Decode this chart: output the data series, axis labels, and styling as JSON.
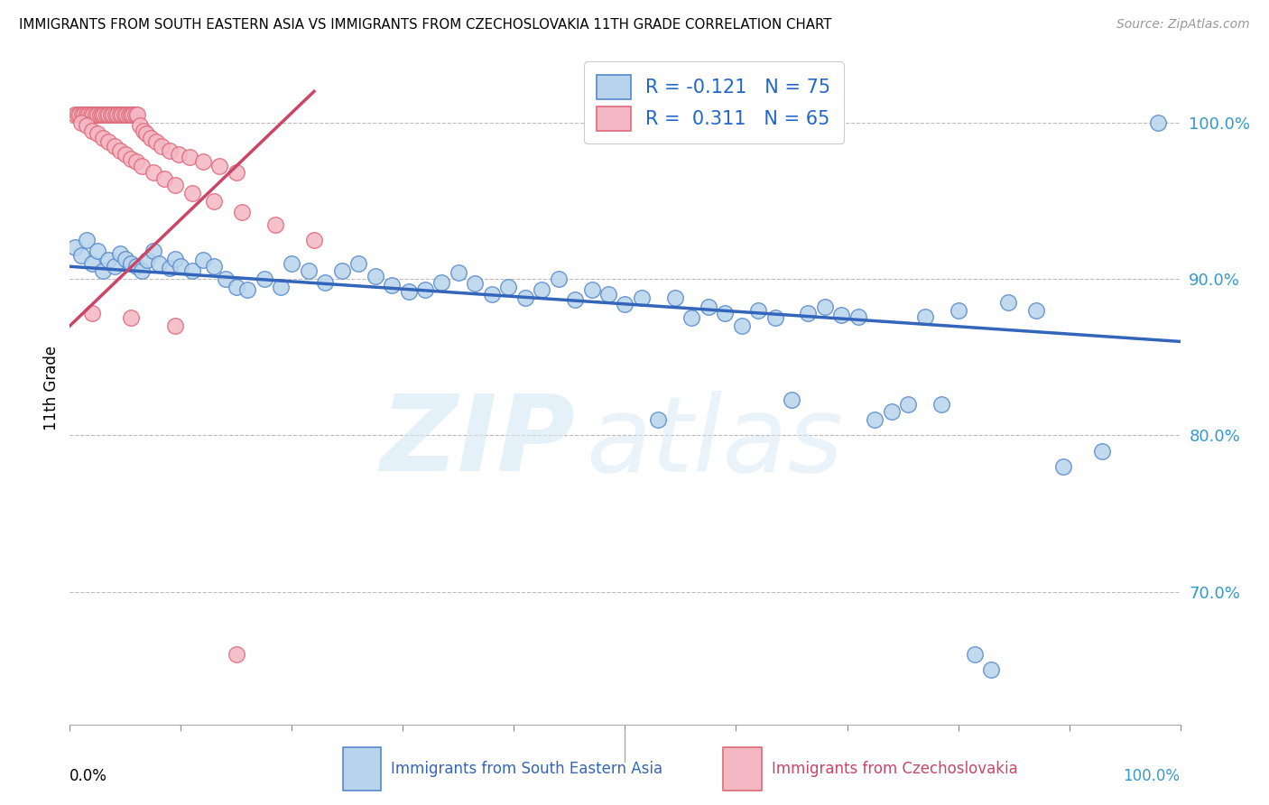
{
  "title": "IMMIGRANTS FROM SOUTH EASTERN ASIA VS IMMIGRANTS FROM CZECHOSLOVAKIA 11TH GRADE CORRELATION CHART",
  "source": "Source: ZipAtlas.com",
  "ylabel": "11th Grade",
  "xlim": [
    0.0,
    1.0
  ],
  "ylim": [
    0.615,
    1.045
  ],
  "ytick_vals": [
    0.7,
    0.8,
    0.9,
    1.0
  ],
  "ytick_labels": [
    "70.0%",
    "80.0%",
    "90.0%",
    "100.0%"
  ],
  "legend_blue_label": "R = -0.121   N = 75",
  "legend_pink_label": "R =  0.311   N = 65",
  "legend_bottom_blue": "Immigrants from South Eastern Asia",
  "legend_bottom_pink": "Immigrants from Czechoslovakia",
  "blue_face": "#b8d4ec",
  "blue_edge": "#5588cc",
  "pink_face": "#f4b8c4",
  "pink_edge": "#e06878",
  "blue_line_color": "#3366bb",
  "pink_line_color": "#cc4466",
  "blue_line_x": [
    0.0,
    1.0
  ],
  "blue_line_y": [
    0.908,
    0.86
  ],
  "pink_line_x": [
    0.0,
    0.22
  ],
  "pink_line_y": [
    0.87,
    1.02
  ],
  "blue_x": [
    0.005,
    0.01,
    0.015,
    0.02,
    0.025,
    0.03,
    0.035,
    0.04,
    0.045,
    0.05,
    0.055,
    0.06,
    0.065,
    0.07,
    0.075,
    0.08,
    0.09,
    0.095,
    0.1,
    0.11,
    0.12,
    0.13,
    0.14,
    0.15,
    0.16,
    0.175,
    0.19,
    0.2,
    0.215,
    0.23,
    0.245,
    0.26,
    0.275,
    0.29,
    0.305,
    0.32,
    0.335,
    0.35,
    0.365,
    0.38,
    0.395,
    0.41,
    0.425,
    0.44,
    0.455,
    0.47,
    0.485,
    0.5,
    0.515,
    0.53,
    0.545,
    0.56,
    0.575,
    0.59,
    0.605,
    0.62,
    0.635,
    0.65,
    0.665,
    0.68,
    0.695,
    0.71,
    0.725,
    0.74,
    0.755,
    0.77,
    0.785,
    0.8,
    0.815,
    0.83,
    0.845,
    0.87,
    0.895,
    0.93,
    0.98
  ],
  "blue_y": [
    0.92,
    0.915,
    0.925,
    0.91,
    0.918,
    0.905,
    0.912,
    0.908,
    0.916,
    0.913,
    0.91,
    0.908,
    0.905,
    0.912,
    0.918,
    0.91,
    0.907,
    0.913,
    0.908,
    0.905,
    0.912,
    0.908,
    0.9,
    0.895,
    0.893,
    0.9,
    0.895,
    0.91,
    0.905,
    0.898,
    0.905,
    0.91,
    0.902,
    0.896,
    0.892,
    0.893,
    0.898,
    0.904,
    0.897,
    0.89,
    0.895,
    0.888,
    0.893,
    0.9,
    0.887,
    0.893,
    0.89,
    0.884,
    0.888,
    0.81,
    0.888,
    0.875,
    0.882,
    0.878,
    0.87,
    0.88,
    0.875,
    0.823,
    0.878,
    0.882,
    0.877,
    0.876,
    0.81,
    0.815,
    0.82,
    0.876,
    0.82,
    0.88,
    0.66,
    0.65,
    0.885,
    0.88,
    0.78,
    0.79,
    1.0
  ],
  "pink_x": [
    0.005,
    0.007,
    0.009,
    0.011,
    0.013,
    0.015,
    0.017,
    0.019,
    0.021,
    0.023,
    0.025,
    0.027,
    0.029,
    0.031,
    0.033,
    0.035,
    0.037,
    0.039,
    0.041,
    0.043,
    0.045,
    0.047,
    0.049,
    0.051,
    0.053,
    0.055,
    0.057,
    0.059,
    0.061,
    0.063,
    0.066,
    0.069,
    0.073,
    0.078,
    0.083,
    0.09,
    0.098,
    0.108,
    0.12,
    0.135,
    0.15,
    0.01,
    0.015,
    0.02,
    0.025,
    0.03,
    0.035,
    0.04,
    0.045,
    0.05,
    0.055,
    0.06,
    0.065,
    0.075,
    0.085,
    0.095,
    0.11,
    0.13,
    0.155,
    0.185,
    0.22,
    0.02,
    0.055,
    0.095,
    0.15
  ],
  "pink_y": [
    1.005,
    1.005,
    1.005,
    1.005,
    1.005,
    1.005,
    1.005,
    1.005,
    1.005,
    1.005,
    1.005,
    1.005,
    1.005,
    1.005,
    1.005,
    1.005,
    1.005,
    1.005,
    1.005,
    1.005,
    1.005,
    1.005,
    1.005,
    1.005,
    1.005,
    1.005,
    1.005,
    1.005,
    1.005,
    0.998,
    0.995,
    0.993,
    0.99,
    0.988,
    0.985,
    0.982,
    0.98,
    0.978,
    0.975,
    0.972,
    0.968,
    1.0,
    0.998,
    0.995,
    0.993,
    0.99,
    0.988,
    0.985,
    0.982,
    0.98,
    0.977,
    0.975,
    0.972,
    0.968,
    0.964,
    0.96,
    0.955,
    0.95,
    0.943,
    0.935,
    0.925,
    0.878,
    0.875,
    0.87,
    0.66
  ]
}
